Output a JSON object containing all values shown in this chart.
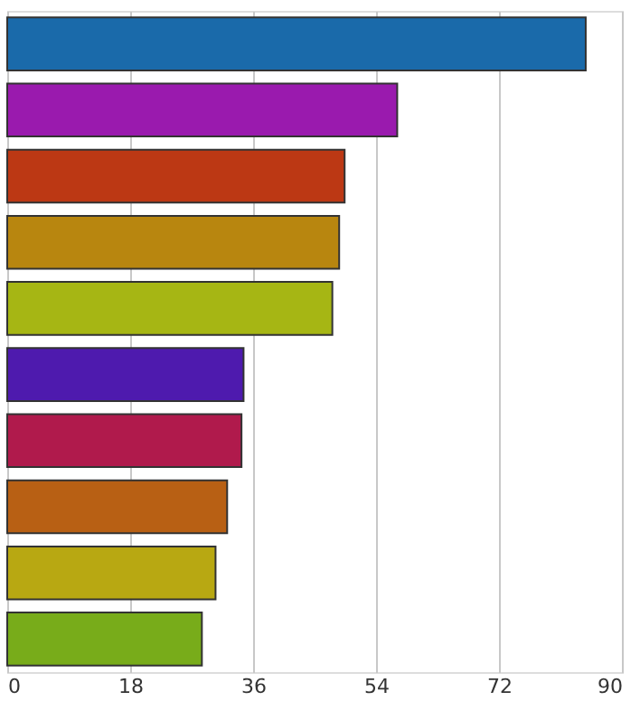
{
  "chart_data": {
    "type": "bar",
    "orientation": "horizontal",
    "categories": [
      null,
      null,
      null,
      null,
      null,
      null,
      null,
      null,
      null,
      null
    ],
    "values": [
      84.7,
      57.1,
      49.4,
      48.6,
      47.6,
      34.6,
      34.3,
      32.2,
      30.5,
      28.5
    ],
    "colors": [
      "#1a6aaa",
      "#9a1aae",
      "#bc3814",
      "#b8860f",
      "#a6b614",
      "#4e1aae",
      "#b01a4c",
      "#b86014",
      "#b8a812",
      "#78ac1a"
    ],
    "xlim": [
      0,
      90
    ],
    "xticks": [
      0,
      18,
      36,
      54,
      72,
      90
    ],
    "grid": "x"
  }
}
